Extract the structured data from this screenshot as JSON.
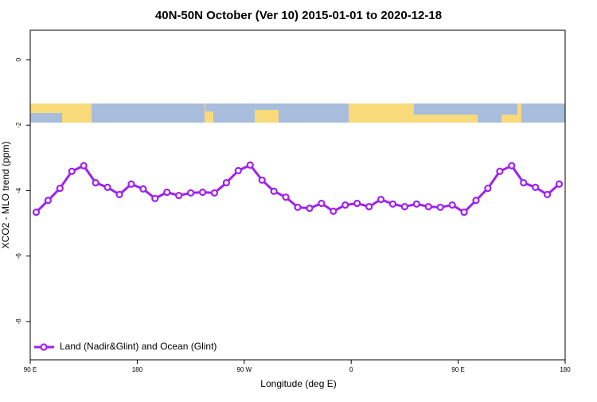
{
  "chart_data": {
    "type": "line",
    "title": "40N-50N October (Ver 10)   2015-01-01 to 2020-12-18",
    "x_label": "Longitude (deg E)",
    "y_label": "XCO2 - MLO trend (ppm)",
    "x": [
      95,
      105,
      115,
      125,
      135,
      145,
      155,
      165,
      175,
      185,
      195,
      205,
      215,
      225,
      235,
      245,
      255,
      265,
      275,
      285,
      295,
      305,
      315,
      325,
      335,
      345,
      355,
      365,
      375,
      385,
      395,
      405,
      415,
      425,
      435,
      445,
      455,
      465,
      475,
      485,
      495,
      505,
      515,
      525,
      535
    ],
    "series": [
      {
        "name": "Land (Nadir&Glint) and Ocean (Glint)",
        "color": "#a020f0",
        "values": [
          -4.66,
          -4.3,
          -3.93,
          -3.41,
          -3.24,
          -3.76,
          -3.9,
          -4.12,
          -3.8,
          -3.95,
          -4.24,
          -4.05,
          -4.15,
          -4.07,
          -4.05,
          -4.07,
          -3.76,
          -3.39,
          -3.22,
          -3.68,
          -4.02,
          -4.2,
          -4.51,
          -4.54,
          -4.39,
          -4.63,
          -4.44,
          -4.39,
          -4.49,
          -4.27,
          -4.41,
          -4.49,
          -4.41,
          -4.49,
          -4.51,
          -4.44,
          -4.66,
          -4.3,
          -3.93,
          -3.41,
          -3.24,
          -3.76,
          -3.9,
          -4.12,
          -3.8
        ]
      }
    ],
    "xlim": [
      90,
      540
    ],
    "xticks": [
      {
        "value": 90,
        "label": "90 E"
      },
      180,
      {
        "value": 270,
        "label": "90 W"
      },
      {
        "value": 360,
        "label": "0"
      },
      {
        "value": 450,
        "label": "90 E"
      },
      {
        "value": 540,
        "label": "180"
      }
    ],
    "ylim": [
      -9.17,
      0.9
    ],
    "yticks": [
      0,
      -2,
      -4,
      -6,
      -8
    ],
    "legend": "bottom-left"
  }
}
